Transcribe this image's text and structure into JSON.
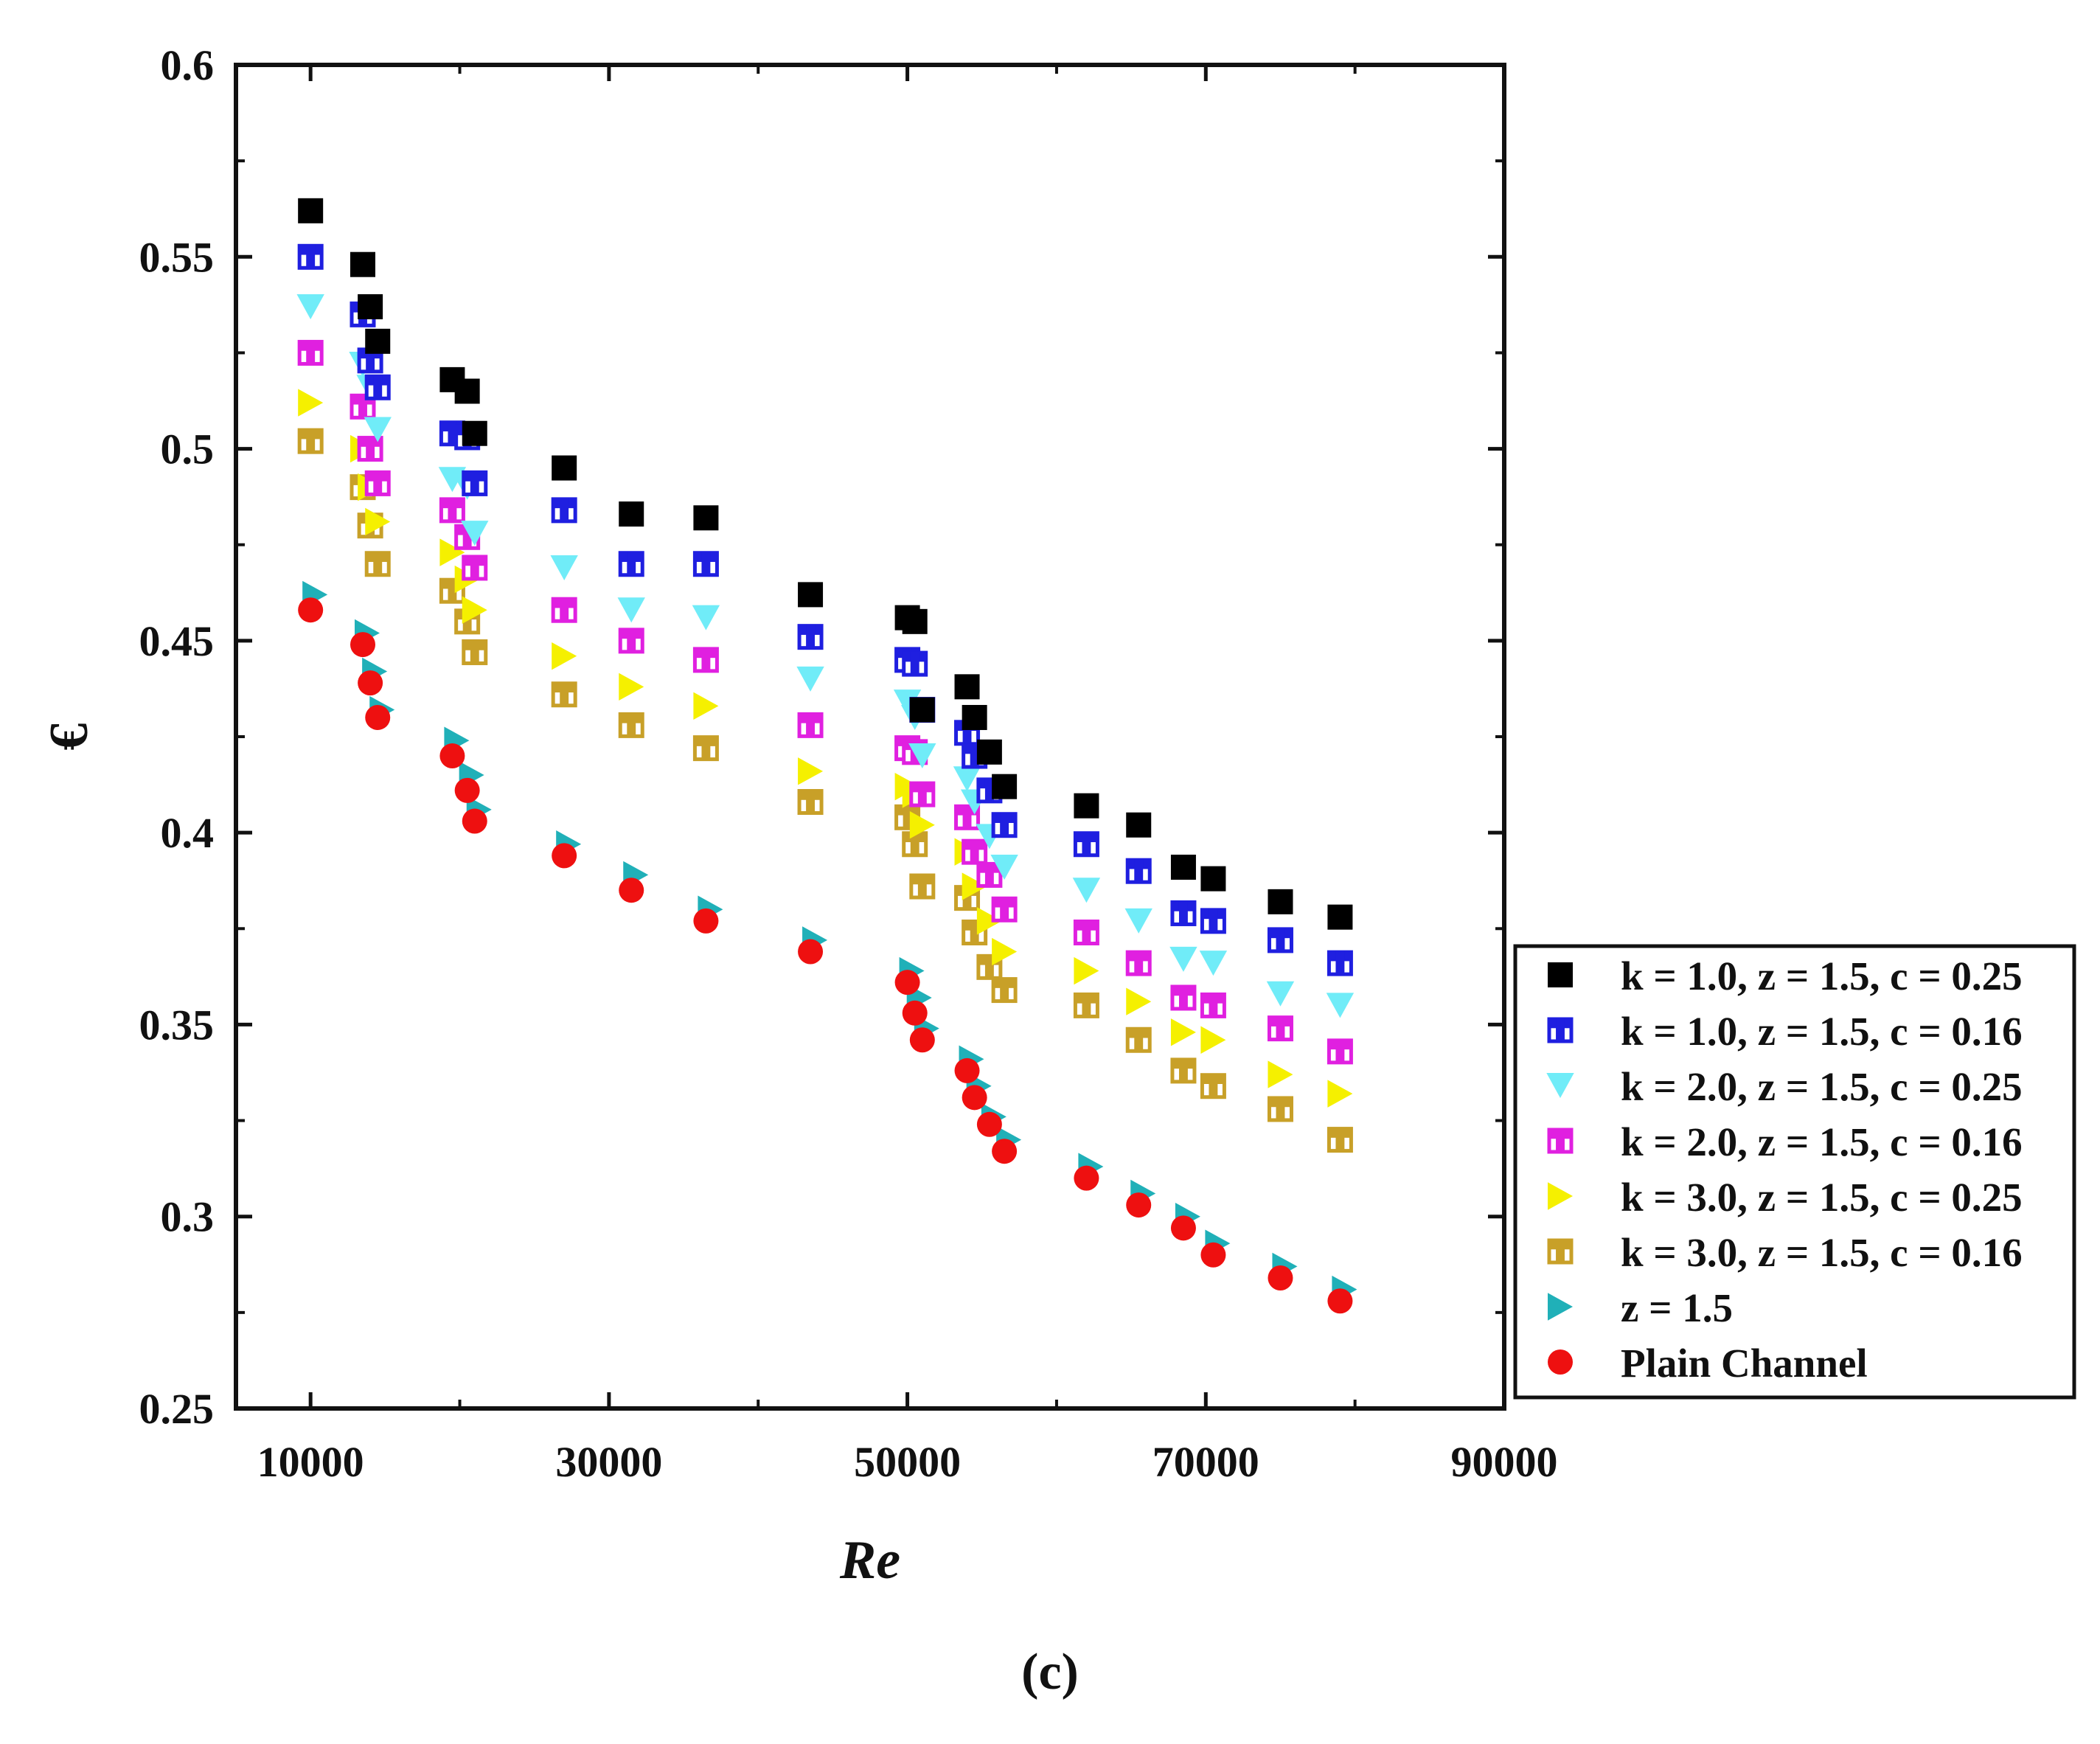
{
  "chart_data": {
    "type": "scatter",
    "title": "",
    "xlabel": "Re",
    "ylabel": "€",
    "xlim": [
      5000,
      90000
    ],
    "ylim": [
      0.25,
      0.6
    ],
    "xticks": [
      10000,
      30000,
      50000,
      70000,
      90000
    ],
    "xtick_labels": [
      "10000",
      "30000",
      "50000",
      "70000",
      "90000"
    ],
    "yticks": [
      0.25,
      0.3,
      0.35,
      0.4,
      0.45,
      0.5,
      0.55,
      0.6
    ],
    "ytick_labels": [
      "0.25",
      "0.3",
      "0.35",
      "0.4",
      "0.45",
      "0.5",
      "0.55",
      "0.6"
    ],
    "grid": false,
    "legend_position": "right-outside",
    "x": [
      10000,
      13500,
      14000,
      14500,
      19500,
      20500,
      21000,
      27000,
      31500,
      36500,
      43500,
      50000,
      50500,
      51000,
      54000,
      54500,
      55500,
      56500,
      62000,
      65500,
      68500,
      70500,
      75000,
      79000
    ],
    "series": [
      {
        "name": "k = 1.0, z = 1.5, c = 0.25",
        "marker": "square-filled",
        "color": "#000000",
        "values": [
          0.562,
          0.548,
          0.537,
          0.528,
          0.518,
          0.515,
          0.504,
          0.495,
          0.483,
          0.482,
          0.462,
          0.456,
          0.455,
          0.432,
          0.438,
          0.43,
          0.421,
          0.412,
          0.407,
          0.402,
          0.391,
          0.388,
          0.382,
          0.378
        ]
      },
      {
        "name": "k = 1.0, z = 1.5, c = 0.16",
        "marker": "square-half",
        "color": "#1f1fe0",
        "values": [
          0.55,
          0.535,
          0.523,
          0.516,
          0.504,
          0.503,
          0.491,
          0.484,
          0.47,
          0.47,
          0.451,
          0.445,
          0.444,
          0.432,
          0.426,
          0.42,
          0.411,
          0.402,
          0.397,
          0.39,
          0.379,
          0.377,
          0.372,
          0.366
        ]
      },
      {
        "name": "k = 2.0, z = 1.5, c = 0.25",
        "marker": "triangle-down",
        "color": "#70ecf8",
        "values": [
          0.537,
          0.522,
          0.516,
          0.505,
          0.492,
          0.49,
          0.478,
          0.469,
          0.458,
          0.456,
          0.44,
          0.434,
          0.43,
          0.42,
          0.414,
          0.408,
          0.399,
          0.391,
          0.385,
          0.377,
          0.367,
          0.366,
          0.358,
          0.355
        ]
      },
      {
        "name": "k = 2.0, z = 1.5, c = 0.16",
        "marker": "square-half",
        "color": "#e020e0",
        "values": [
          0.525,
          0.511,
          0.5,
          0.491,
          0.484,
          0.477,
          0.469,
          0.458,
          0.45,
          0.445,
          0.428,
          0.422,
          0.421,
          0.41,
          0.404,
          0.395,
          0.389,
          0.38,
          0.374,
          0.366,
          0.357,
          0.355,
          0.349,
          0.343
        ]
      },
      {
        "name": "k = 3.0, z = 1.5, c = 0.25",
        "marker": "triangle-right",
        "color": "#f5f000",
        "values": [
          0.512,
          0.5,
          0.49,
          0.481,
          0.473,
          0.466,
          0.458,
          0.446,
          0.438,
          0.433,
          0.416,
          0.412,
          0.41,
          0.402,
          0.395,
          0.386,
          0.377,
          0.369,
          0.364,
          0.356,
          0.348,
          0.346,
          0.337,
          0.332
        ]
      },
      {
        "name": "k = 3.0, z = 1.5, c = 0.16",
        "marker": "square-half",
        "color": "#c8a028",
        "values": [
          0.502,
          0.49,
          0.48,
          0.47,
          0.463,
          0.455,
          0.447,
          0.436,
          0.428,
          0.422,
          0.408,
          0.404,
          0.397,
          0.386,
          0.383,
          0.374,
          0.365,
          0.359,
          0.355,
          0.346,
          0.338,
          0.334,
          0.328,
          0.32
        ]
      },
      {
        "name": "z = 1.5",
        "marker": "triangle-right",
        "color": "#20b0b8",
        "values": [
          0.462,
          0.452,
          0.442,
          0.432,
          0.424,
          0.415,
          0.406,
          0.397,
          0.389,
          0.38,
          0.372,
          0.364,
          0.357,
          0.349,
          0.341,
          0.334,
          0.326,
          0.32,
          0.313,
          0.306,
          0.3,
          0.293,
          0.287,
          0.281
        ]
      },
      {
        "name": "Plain Channel",
        "marker": "circle-filled",
        "color": "#ee1010",
        "values": [
          0.458,
          0.449,
          0.439,
          0.43,
          0.42,
          0.411,
          0.403,
          0.394,
          0.385,
          0.377,
          0.369,
          0.361,
          0.353,
          0.346,
          0.338,
          0.331,
          0.324,
          0.317,
          0.31,
          0.303,
          0.297,
          0.29,
          0.284,
          0.278
        ]
      }
    ],
    "panel_label": "(c)"
  }
}
